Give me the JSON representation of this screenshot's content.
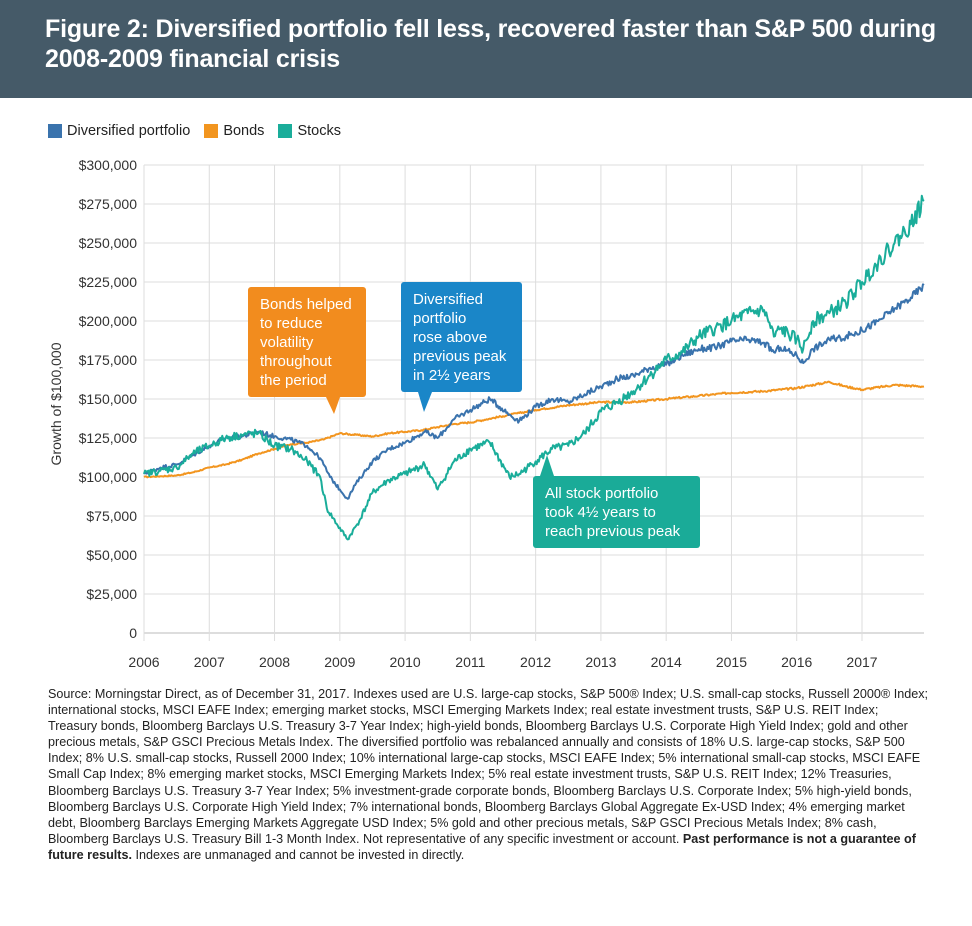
{
  "header": {
    "title": "Figure 2: Diversified portfolio fell less, recovered faster than S&P 500 during 2008-2009 financial crisis"
  },
  "colors": {
    "header_bg": "#455a68",
    "diversified": "#3a73ad",
    "bonds": "#f2951f",
    "stocks": "#1aad9a",
    "callout_bonds": "#f28c1e",
    "callout_diversified": "#1a86c8",
    "callout_stocks": "#1aab98"
  },
  "chart_data": {
    "type": "line",
    "title": "",
    "xlabel": "",
    "ylabel": "Growth of $100,000",
    "xlim": [
      2006,
      2017.95
    ],
    "ylim": [
      0,
      300000
    ],
    "x_ticks": [
      "2006",
      "2007",
      "2008",
      "2009",
      "2010",
      "2011",
      "2012",
      "2013",
      "2014",
      "2015",
      "2016",
      "2017"
    ],
    "y_ticks": [
      "0",
      "$25,000",
      "$50,000",
      "$75,000",
      "$100,000",
      "$125,000",
      "$150,000",
      "$175,000",
      "$200,000",
      "$225,000",
      "$250,000",
      "$275,000",
      "$300,000"
    ],
    "grid": true,
    "legend_position": "top-left",
    "series": [
      {
        "name": "Diversified portfolio",
        "color": "#3a73ad",
        "x": [
          2006.0,
          2006.25,
          2006.5,
          2006.75,
          2007.0,
          2007.25,
          2007.5,
          2007.75,
          2008.0,
          2008.25,
          2008.5,
          2008.7,
          2008.85,
          2009.0,
          2009.12,
          2009.25,
          2009.5,
          2009.75,
          2010.0,
          2010.3,
          2010.5,
          2010.75,
          2011.0,
          2011.3,
          2011.6,
          2011.75,
          2012.0,
          2012.25,
          2012.5,
          2012.75,
          2013.0,
          2013.25,
          2013.5,
          2013.75,
          2014.0,
          2014.25,
          2014.5,
          2014.75,
          2015.0,
          2015.25,
          2015.5,
          2015.65,
          2015.75,
          2016.0,
          2016.1,
          2016.25,
          2016.5,
          2016.75,
          2017.0,
          2017.25,
          2017.5,
          2017.75,
          2017.95
        ],
        "y": [
          102000,
          106000,
          108000,
          114000,
          120000,
          125000,
          126000,
          129000,
          126000,
          124000,
          120000,
          112000,
          100000,
          92000,
          86000,
          96000,
          110000,
          118000,
          122000,
          129000,
          125000,
          137000,
          143000,
          150000,
          140000,
          136000,
          145000,
          150000,
          148000,
          153000,
          158000,
          163000,
          165000,
          170000,
          172000,
          178000,
          182000,
          183000,
          187000,
          188000,
          186000,
          180000,
          183000,
          178000,
          173000,
          182000,
          188000,
          190000,
          194000,
          200000,
          208000,
          215000,
          223000
        ]
      },
      {
        "name": "Bonds",
        "color": "#f2951f",
        "x": [
          2006.0,
          2006.25,
          2006.5,
          2006.75,
          2007.0,
          2007.25,
          2007.5,
          2007.75,
          2008.0,
          2008.25,
          2008.5,
          2008.75,
          2009.0,
          2009.25,
          2009.5,
          2009.75,
          2010.0,
          2010.25,
          2010.5,
          2010.75,
          2011.0,
          2011.25,
          2011.5,
          2011.75,
          2012.0,
          2012.5,
          2013.0,
          2013.5,
          2014.0,
          2014.5,
          2015.0,
          2015.5,
          2016.0,
          2016.5,
          2016.75,
          2017.0,
          2017.5,
          2017.95
        ],
        "y": [
          100000,
          100500,
          101000,
          103000,
          106000,
          108000,
          111000,
          115000,
          118000,
          121000,
          122000,
          124000,
          128000,
          127000,
          126000,
          128000,
          129000,
          130000,
          132000,
          134000,
          135000,
          137000,
          139000,
          141000,
          143000,
          146000,
          148000,
          148000,
          150000,
          152000,
          154000,
          155000,
          157000,
          161000,
          158000,
          156000,
          159000,
          158000
        ]
      },
      {
        "name": "Stocks",
        "color": "#1aad9a",
        "x": [
          2006.0,
          2006.25,
          2006.5,
          2006.75,
          2007.0,
          2007.25,
          2007.5,
          2007.75,
          2008.0,
          2008.25,
          2008.5,
          2008.7,
          2008.8,
          2008.95,
          2009.12,
          2009.3,
          2009.5,
          2009.75,
          2010.0,
          2010.3,
          2010.5,
          2010.75,
          2011.0,
          2011.3,
          2011.6,
          2011.75,
          2012.0,
          2012.25,
          2012.5,
          2012.75,
          2013.0,
          2013.25,
          2013.5,
          2013.75,
          2014.0,
          2014.25,
          2014.5,
          2014.75,
          2015.0,
          2015.25,
          2015.5,
          2015.65,
          2015.75,
          2016.0,
          2016.1,
          2016.25,
          2016.5,
          2016.75,
          2017.0,
          2017.25,
          2017.5,
          2017.75,
          2017.95
        ],
        "y": [
          102000,
          104000,
          106000,
          115000,
          120000,
          125000,
          127000,
          128000,
          120000,
          118000,
          110000,
          100000,
          80000,
          70000,
          60000,
          72000,
          90000,
          98000,
          102000,
          108000,
          92000,
          110000,
          118000,
          122000,
          100000,
          102000,
          110000,
          118000,
          120000,
          128000,
          142000,
          148000,
          155000,
          165000,
          175000,
          180000,
          190000,
          195000,
          200000,
          205000,
          207000,
          190000,
          195000,
          188000,
          182000,
          200000,
          205000,
          212000,
          225000,
          238000,
          250000,
          262000,
          277000
        ]
      }
    ],
    "annotations": [
      {
        "text": "Bonds helped to reduce volatility throughout the period",
        "color": "#f28c1e"
      },
      {
        "text": "Diversified portfolio rose above previous peak in 2½ years",
        "color": "#1a86c8"
      },
      {
        "text": "All stock portfolio took 4½ years to reach previous peak",
        "color": "#1aab98"
      }
    ]
  },
  "legend": [
    {
      "label": "Diversified portfolio",
      "color": "#3a73ad"
    },
    {
      "label": "Bonds",
      "color": "#f2951f"
    },
    {
      "label": "Stocks",
      "color": "#1aad9a"
    }
  ],
  "callouts": {
    "bonds": [
      "Bonds helped",
      "to reduce",
      "volatility",
      "throughout",
      "the period"
    ],
    "diversified": [
      "Diversified",
      "portfolio",
      "rose above",
      "previous peak",
      "in 2½ years"
    ],
    "stocks": [
      "All stock portfolio",
      "took 4½ years to",
      "reach previous peak"
    ]
  },
  "footnote": {
    "text": "Source: Morningstar Direct, as of December 31, 2017. Indexes used are U.S. large-cap stocks, S&P 500® Index; U.S. small-cap stocks, Russell 2000® Index; international stocks, MSCI EAFE Index; emerging market stocks, MSCI Emerging Markets Index; real estate investment trusts, S&P U.S. REIT Index; Treasury bonds, Bloomberg Barclays U.S. Treasury 3-7 Year Index; high-yield bonds, Bloomberg Barclays U.S. Corporate High Yield Index; gold and other precious metals, S&P GSCI Precious Metals Index. The diversified portfolio was rebalanced annually and consists of 18% U.S. large-cap stocks, S&P 500 Index; 8% U.S. small-cap stocks, Russell 2000 Index; 10% international large-cap stocks, MSCI EAFE Index; 5% international small-cap stocks, MSCI EAFE Small Cap Index; 8% emerging market stocks, MSCI Emerging Markets Index; 5% real estate investment trusts, S&P U.S. REIT Index; 12% Treasuries, Bloomberg Barclays U.S. Treasury 3-7 Year Index; 5% investment-grade corporate bonds, Bloomberg Barclays U.S. Corporate Index; 5% high-yield bonds, Bloomberg Barclays U.S. Corporate High Yield Index; 7% international bonds, Bloomberg Barclays Global Aggregate Ex-USD Index; 4% emerging market debt, Bloomberg Barclays Emerging Markets Aggregate USD Index; 5% gold and other precious metals, S&P GSCI Precious Metals Index; 8% cash, Bloomberg Barclays U.S. Treasury Bill 1-3 Month Index. Not representative of any specific investment or account.",
    "bold": "Past performance is not a guarantee of future results.",
    "tail": " Indexes are unmanaged and cannot be invested in directly."
  }
}
